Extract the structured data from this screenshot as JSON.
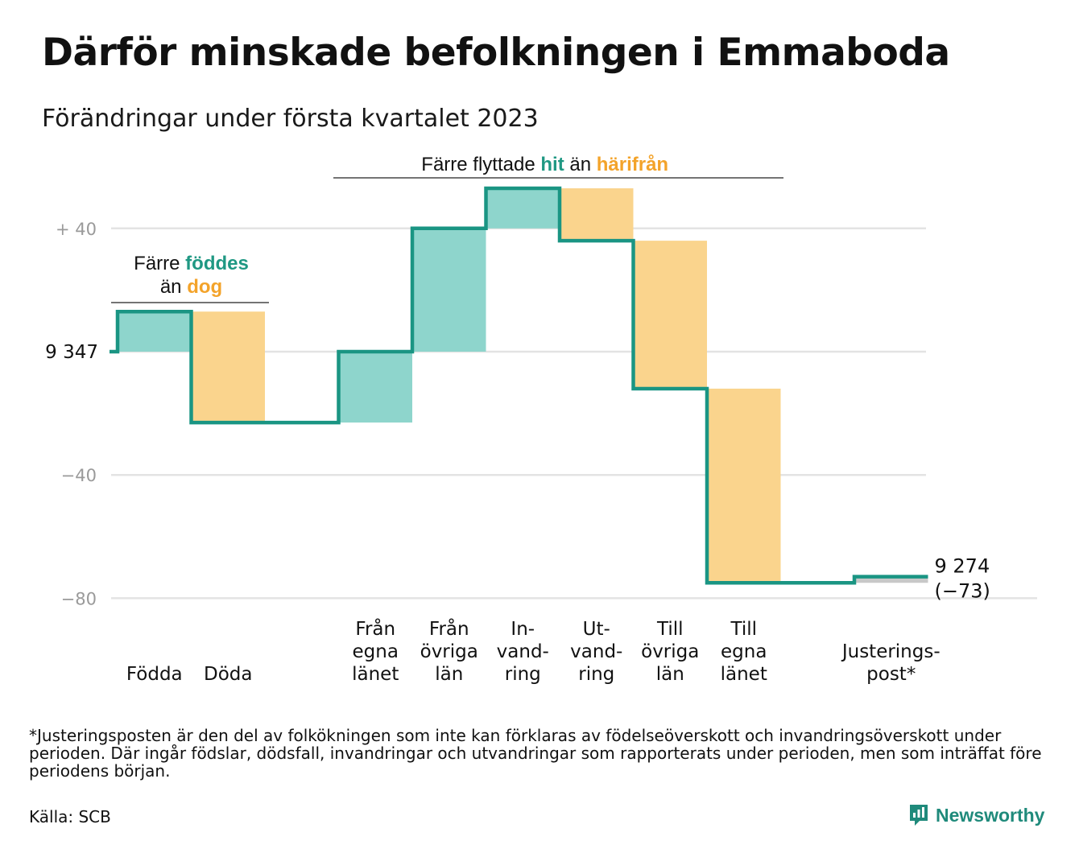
{
  "title": "Därför minskade befolkningen i Emmaboda",
  "subtitle": "Förändringar under första kvartalet 2023",
  "chart_data": {
    "type": "waterfall",
    "start_value": 9347,
    "start_label": "9 347",
    "end_label": "9 274",
    "end_change_label": "(−73)",
    "ylim": [
      -87,
      55
    ],
    "yticks": [
      {
        "value": 40,
        "label": "+ 40"
      },
      {
        "value": 0,
        "label": ""
      },
      {
        "value": -40,
        "label": "−40"
      },
      {
        "value": -80,
        "label": "−80"
      }
    ],
    "steps": [
      {
        "label": "Födda",
        "change": 13,
        "kind": "in"
      },
      {
        "label": "Döda",
        "change": -36,
        "kind": "out"
      },
      {
        "label": "",
        "change": 0,
        "kind": "gap"
      },
      {
        "label": "Från\negna\nlänet",
        "change": 23,
        "kind": "in"
      },
      {
        "label": "Från\növriga\nlän",
        "change": 40,
        "kind": "in"
      },
      {
        "label": "In-\nvand-\nring",
        "change": 13,
        "kind": "in"
      },
      {
        "label": "Ut-\nvand-\nring",
        "change": -17,
        "kind": "out"
      },
      {
        "label": "Till\növriga\nlän",
        "change": -48,
        "kind": "out"
      },
      {
        "label": "Till\negna\nlänet",
        "change": -63,
        "kind": "out"
      },
      {
        "label": "",
        "change": 0,
        "kind": "gap"
      },
      {
        "label": "Justerings-\npost*",
        "change": 2,
        "kind": "adj"
      }
    ],
    "annotations": [
      {
        "parts": [
          [
            {
              "text": "Färre ",
              "color": "#111111",
              "bold": false
            },
            {
              "text": "föddes",
              "color": "#1f9883",
              "bold": true
            }
          ],
          [
            {
              "text": "än ",
              "color": "#111111",
              "bold": false
            },
            {
              "text": "dog",
              "color": "#f3a32a",
              "bold": true
            }
          ]
        ]
      },
      {
        "parts": [
          [
            {
              "text": "Färre flyttade ",
              "color": "#111111",
              "bold": false
            },
            {
              "text": "hit",
              "color": "#1f9883",
              "bold": true
            },
            {
              "text": " än ",
              "color": "#111111",
              "bold": false
            },
            {
              "text": "härifrån",
              "color": "#f3a32a",
              "bold": true
            }
          ]
        ]
      }
    ],
    "colors": {
      "in": "#8ed5cc",
      "out": "#fad48d",
      "adj": "#c8c8c8",
      "line": "#1a9583",
      "grid": "#e3e3e3",
      "tick": "#9a9a9a"
    }
  },
  "footnote": "*Justeringsposten är den del av folkökningen som inte kan förklaras av födelseöverskott och invandringsöverskott under perioden. Där ingår födslar, dödsfall, invandringar och utvandringar som rapporterats under perioden, men som inträffat före periodens början.",
  "source": "Källa: SCB",
  "brand": "Newsworthy"
}
